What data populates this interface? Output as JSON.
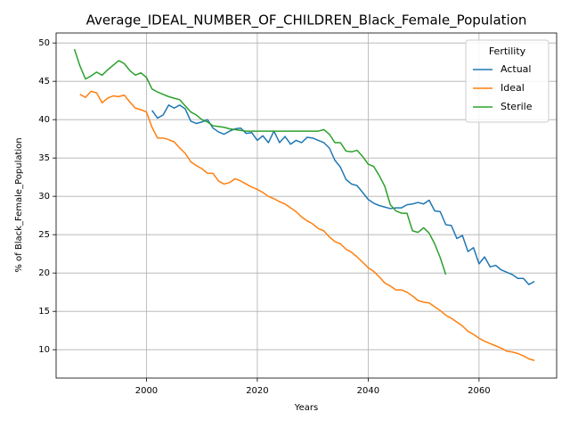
{
  "chart_data": {
    "type": "line",
    "title": "Average_IDEAL_NUMBER_OF_CHILDREN_Black_Female_Population",
    "xlabel": "Years",
    "ylabel": "% of Black_Female_Population",
    "legend_title": "Fertility",
    "legend_loc": "upper right",
    "grid": true,
    "xlim": [
      1983.7,
      2074
    ],
    "ylim": [
      6.3,
      51.3
    ],
    "xticks": [
      2000,
      2020,
      2040,
      2060
    ],
    "yticks": [
      10,
      15,
      20,
      25,
      30,
      35,
      40,
      45,
      50
    ],
    "x": [
      1987,
      1988,
      1989,
      1990,
      1991,
      1992,
      1993,
      1994,
      1995,
      1996,
      1997,
      1998,
      1999,
      2000,
      2001,
      2002,
      2003,
      2004,
      2005,
      2006,
      2007,
      2008,
      2009,
      2010,
      2011,
      2012,
      2013,
      2014,
      2015,
      2016,
      2017,
      2018,
      2019,
      2020,
      2021,
      2022,
      2023,
      2024,
      2025,
      2026,
      2027,
      2028,
      2029,
      2030,
      2031,
      2032,
      2033,
      2034,
      2035,
      2036,
      2037,
      2038,
      2039,
      2040,
      2041,
      2042,
      2043,
      2044,
      2045,
      2046,
      2047,
      2048,
      2049,
      2050,
      2051,
      2052,
      2053,
      2054,
      2055,
      2056,
      2057,
      2058,
      2059,
      2060,
      2061,
      2062,
      2063,
      2064,
      2065,
      2066,
      2067,
      2068,
      2069,
      2070
    ],
    "series": [
      {
        "name": "Actual",
        "color": "#1f77b4",
        "values": [
          null,
          null,
          null,
          null,
          null,
          null,
          null,
          null,
          null,
          null,
          null,
          null,
          null,
          null,
          41.2,
          40.2,
          40.6,
          41.9,
          41.5,
          41.9,
          41.4,
          39.8,
          39.5,
          39.7,
          40.0,
          38.9,
          38.4,
          38.1,
          38.5,
          38.8,
          38.9,
          38.2,
          38.3,
          37.3,
          37.9,
          37.0,
          38.5,
          37.0,
          37.8,
          36.8,
          37.3,
          37.0,
          37.7,
          37.6,
          37.3,
          37.0,
          36.3,
          34.7,
          33.8,
          32.2,
          31.6,
          31.4,
          30.5,
          29.6,
          29.1,
          28.8,
          28.6,
          28.4,
          28.5,
          28.5,
          28.9,
          29.0,
          29.2,
          29.0,
          29.5,
          28.1,
          28.0,
          26.3,
          26.2,
          24.5,
          24.9,
          22.8,
          23.3,
          21.2,
          22.1,
          20.8,
          21.0,
          20.4,
          20.1,
          19.8,
          19.3,
          19.3,
          18.5,
          18.9
        ]
      },
      {
        "name": "Ideal",
        "color": "#ff7f0e",
        "values": [
          null,
          43.3,
          42.9,
          43.7,
          43.5,
          42.2,
          42.8,
          43.1,
          43.0,
          43.2,
          42.3,
          41.5,
          41.3,
          41.0,
          39.0,
          37.6,
          37.6,
          37.4,
          37.1,
          36.3,
          35.6,
          34.5,
          34.0,
          33.6,
          33.0,
          33.0,
          32.0,
          31.6,
          31.8,
          32.3,
          32.0,
          31.6,
          31.2,
          30.9,
          30.5,
          30.0,
          29.7,
          29.3,
          29.0,
          28.5,
          28.0,
          27.3,
          26.8,
          26.4,
          25.8,
          25.5,
          24.7,
          24.1,
          23.8,
          23.1,
          22.7,
          22.1,
          21.4,
          20.7,
          20.2,
          19.5,
          18.7,
          18.3,
          17.8,
          17.8,
          17.5,
          17.0,
          16.4,
          16.2,
          16.1,
          15.6,
          15.1,
          14.5,
          14.1,
          13.6,
          13.1,
          12.4,
          12.0,
          11.5,
          11.1,
          10.8,
          10.5,
          10.2,
          9.8,
          9.7,
          9.5,
          9.2,
          8.8,
          8.6
        ]
      },
      {
        "name": "Sterile",
        "color": "#2ca02c",
        "values": [
          49.2,
          47.0,
          45.3,
          45.7,
          46.2,
          45.8,
          46.5,
          47.1,
          47.7,
          47.3,
          46.4,
          45.8,
          46.1,
          45.5,
          44.0,
          43.6,
          43.3,
          43.0,
          42.8,
          42.6,
          41.8,
          41.0,
          40.6,
          40.0,
          39.7,
          39.2,
          39.1,
          39.0,
          38.8,
          38.7,
          38.6,
          38.5,
          38.5,
          38.5,
          38.5,
          38.5,
          38.5,
          38.5,
          38.5,
          38.5,
          38.5,
          38.5,
          38.5,
          38.5,
          38.5,
          38.7,
          38.1,
          37.0,
          37.0,
          35.9,
          35.8,
          36.0,
          35.2,
          34.2,
          33.9,
          32.7,
          31.3,
          28.9,
          28.1,
          27.8,
          27.8,
          25.5,
          25.3,
          25.9,
          25.2,
          23.8,
          22.0,
          19.8,
          null,
          null,
          null,
          null,
          null,
          null,
          null,
          null,
          null,
          null,
          null,
          null,
          null,
          null,
          null,
          null
        ]
      }
    ]
  }
}
